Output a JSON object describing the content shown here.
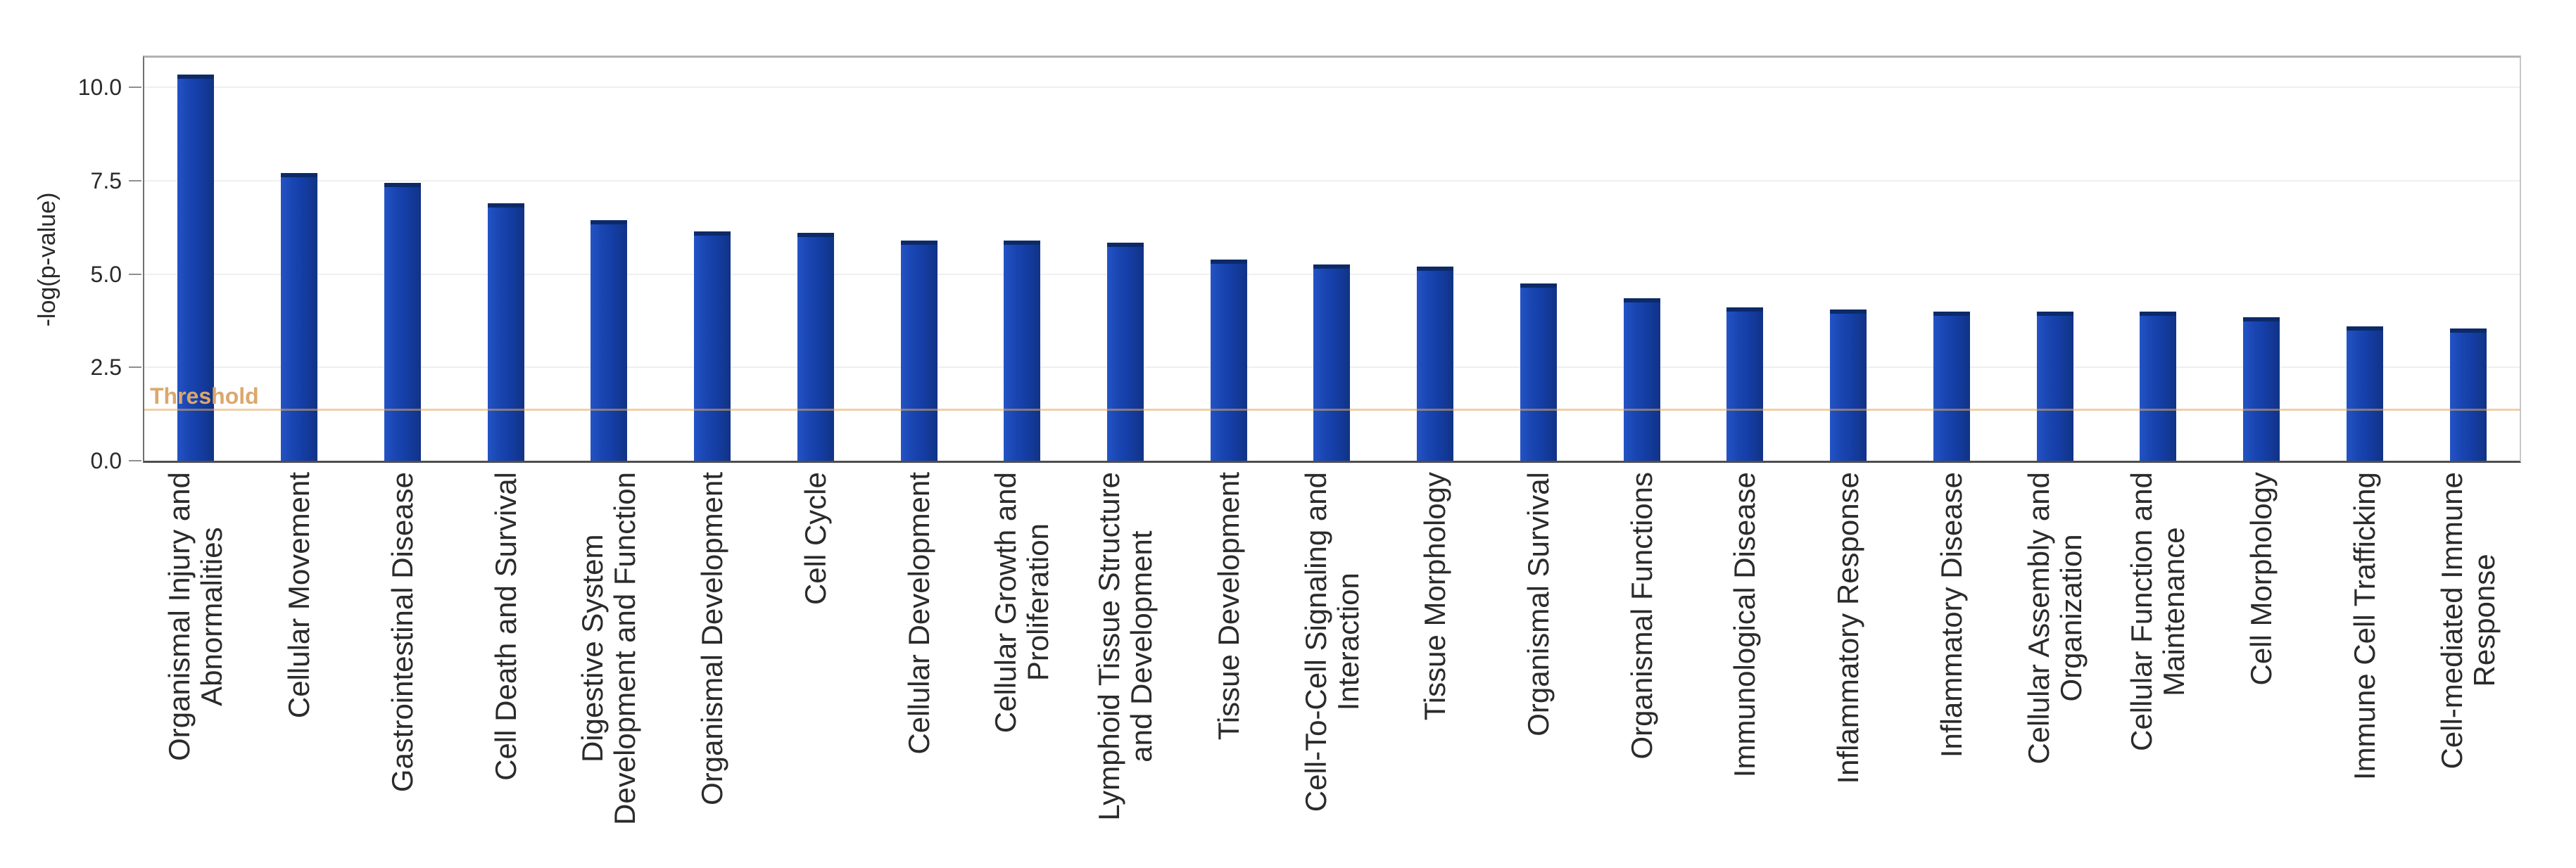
{
  "chart_data": {
    "type": "bar",
    "title": "",
    "xlabel": "",
    "ylabel": "-log(p-value)",
    "ylim": [
      0,
      10.8
    ],
    "yticks": [
      0.0,
      2.5,
      5.0,
      7.5,
      10.0
    ],
    "ytick_labels": [
      "0.0",
      "2.5",
      "5.0",
      "7.5",
      "10.0"
    ],
    "gridline_values": [
      2.5,
      5.0,
      7.5,
      10.0
    ],
    "grid": "horizontal",
    "legend_position": "none",
    "threshold": {
      "label": "Threshold",
      "value": 1.35
    },
    "colors": {
      "bar": "#153fa8",
      "bar_cap": "#0c2a69",
      "threshold_line": "#e1aa5f",
      "threshold_text": "#dca76b",
      "gridline": "#efefef"
    },
    "categories": [
      "Organismal Injury and\nAbnormalities",
      "Cellular Movement",
      "Gastrointestinal Disease",
      "Cell Death and Survival",
      "Digestive System\nDevelopment and Function",
      "Organismal Development",
      "Cell Cycle",
      "Cellular Development",
      "Cellular Growth and\nProliferation",
      "Lymphoid Tissue Structure\nand Development",
      "Tissue Development",
      "Cell-To-Cell Signaling and\nInteraction",
      "Tissue Morphology",
      "Organismal Survival",
      "Organismal Functions",
      "Immunological Disease",
      "Inflammatory Response",
      "Inflammatory Disease",
      "Cellular Assembly and\nOrganization",
      "Cellular Function and\nMaintenance",
      "Cell Morphology",
      "Immune Cell Trafficking",
      "Cell-mediated Immune\nResponse"
    ],
    "values": [
      10.35,
      7.7,
      7.45,
      6.9,
      6.45,
      6.15,
      6.1,
      5.9,
      5.9,
      5.85,
      5.4,
      5.25,
      5.2,
      4.75,
      4.35,
      4.1,
      4.05,
      4.0,
      4.0,
      4.0,
      3.85,
      3.6,
      3.55
    ]
  }
}
